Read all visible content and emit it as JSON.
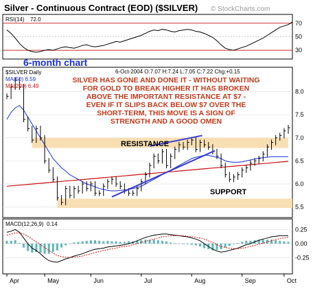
{
  "title": "Silver - Continuous Contract (EOD) ($SILVER)",
  "watermark": "© StockCharts.com",
  "rsi": {
    "label": "RSI(14)",
    "value": "72.0",
    "ylim": [
      20,
      80
    ],
    "ticks": [
      "70",
      "50",
      "30"
    ],
    "values": [
      60,
      55,
      48,
      40,
      34,
      30,
      28,
      27,
      28,
      30,
      31,
      30,
      32,
      34,
      35,
      34,
      33,
      35,
      37,
      38,
      36,
      35,
      36,
      37,
      39,
      41,
      43,
      42,
      44,
      46,
      48,
      50,
      52,
      55,
      58,
      60,
      59,
      61,
      60,
      58,
      57,
      59,
      60,
      61,
      60,
      58,
      57,
      55,
      52,
      49,
      44,
      38,
      33,
      31,
      30,
      32,
      34,
      36,
      39,
      42,
      45,
      48,
      52,
      56,
      60,
      64,
      66,
      68,
      72
    ]
  },
  "price_panel": {
    "header_left": "$SILVER Daily",
    "header_right": "6-Oct-2004  O:7.07  H:7.24  L:7.05  C:7.22  Chg:+0.15",
    "ma50_label": "MA(50) 6.59",
    "ma200_label": "MA(200) 6.49",
    "annotation_lines": [
      "SILVER HAS GONE AND DONE IT - WITHOUT WAITING",
      "FOR GOLD TO BREAK HIGHER IT HAS BROKEN",
      "ABOVE THE IMPORTANT RESISTANCE AT $7 -",
      "EVEN IF IT SLIPS BACK BELOW $7 OVER THE",
      "SHORT-TERM, THIS MOVE IS A SIGN OF",
      "STRENGTH AND A GOOD OMEN"
    ],
    "six_month_label": "6-month chart",
    "resistance_label": "RESISTANCE",
    "support_label": "SUPPORT"
  },
  "macd": {
    "label": "MACD(12,26,9)",
    "value": "0.14",
    "ylim": [
      -0.5,
      0.4
    ],
    "ticks": [
      "0.25",
      "0.00",
      "-0.25"
    ]
  },
  "x_axis": {
    "labels": [
      "Apr",
      "May",
      "Jun",
      "Jul",
      "Aug",
      "Sep",
      "Oct"
    ]
  },
  "chart_data": {
    "type": "line",
    "title": "Silver - Continuous Contract (EOD) ($SILVER)",
    "xlabel": "",
    "ylabel": "",
    "x": [
      "Apr",
      "May",
      "Jun",
      "Jul",
      "Aug",
      "Sep",
      "Oct"
    ],
    "ylim": [
      5.3,
      8.5
    ],
    "yticks": [
      "8.0",
      "7.5",
      "7.0",
      "6.5",
      "6.0",
      "5.5"
    ],
    "price_closes": [
      7.9,
      8.1,
      8.25,
      8.1,
      7.4,
      7.2,
      6.95,
      7.2,
      7.0,
      6.5,
      6.3,
      6.1,
      5.7,
      5.6,
      5.9,
      5.75,
      5.9,
      5.85,
      6.0,
      5.9,
      6.0,
      5.8,
      5.8,
      5.95,
      6.05,
      6.1,
      6.0,
      5.95,
      5.85,
      5.8,
      5.8,
      5.9,
      6.05,
      6.2,
      6.4,
      6.6,
      6.5,
      6.7,
      6.4,
      6.6,
      6.75,
      6.85,
      6.8,
      6.9,
      6.95,
      6.75,
      6.9,
      6.85,
      6.8,
      6.7,
      6.6,
      6.4,
      6.2,
      6.1,
      6.15,
      6.2,
      6.3,
      6.35,
      6.45,
      6.5,
      6.55,
      6.65,
      6.8,
      6.9,
      7.0,
      7.05,
      7.15,
      7.22
    ],
    "ma50": [
      7.4,
      7.55,
      7.65,
      7.7,
      7.6,
      7.45,
      7.3,
      7.15,
      7.0,
      6.85,
      6.7,
      6.55,
      6.45,
      6.35,
      6.28,
      6.2,
      6.15,
      6.1,
      6.05,
      6.0,
      5.97,
      5.94,
      5.9,
      5.88,
      5.86,
      5.85,
      5.85,
      5.86,
      5.87,
      5.88,
      5.9,
      5.92,
      5.95,
      6.0,
      6.05,
      6.1,
      6.15,
      6.2,
      6.25,
      6.3,
      6.35,
      6.4,
      6.45,
      6.5,
      6.55,
      6.58,
      6.6,
      6.62,
      6.62,
      6.6,
      6.58,
      6.55,
      6.5,
      6.48,
      6.47,
      6.47,
      6.48,
      6.5,
      6.52,
      6.54,
      6.56,
      6.57,
      6.58,
      6.59,
      6.59,
      6.59,
      6.59,
      6.59
    ],
    "ma200_start": 5.95,
    "ma200_end": 6.49,
    "resistance_zone": [
      6.78,
      7.0
    ],
    "support_zone": [
      5.48,
      5.68
    ],
    "trendlines": [
      {
        "name": "",
        "x": [
          25.0,
          49.5
        ],
        "y": [
          5.72,
          6.72
        ]
      },
      {
        "name": "",
        "x": [
          34.0,
          46.5
        ],
        "y": [
          6.82,
          7.05
        ]
      }
    ],
    "macd_line": [
      0.2,
      0.22,
      0.25,
      0.2,
      0.1,
      0.0,
      -0.08,
      -0.12,
      -0.18,
      -0.25,
      -0.3,
      -0.32,
      -0.33,
      -0.3,
      -0.27,
      -0.25,
      -0.22,
      -0.2,
      -0.18,
      -0.15,
      -0.12,
      -0.1,
      -0.09,
      -0.08,
      -0.06,
      -0.05,
      -0.04,
      -0.03,
      -0.02,
      0.0,
      0.02,
      0.05,
      0.08,
      0.11,
      0.13,
      0.15,
      0.16,
      0.17,
      0.17,
      0.16,
      0.15,
      0.14,
      0.13,
      0.12,
      0.1,
      0.08,
      0.05,
      0.0,
      -0.05,
      -0.1,
      -0.13,
      -0.15,
      -0.14,
      -0.12,
      -0.1,
      -0.08,
      -0.05,
      -0.02,
      0.0,
      0.03,
      0.06,
      0.08,
      0.1,
      0.12,
      0.13,
      0.14,
      0.14,
      0.14
    ],
    "macd_signal": [
      0.15,
      0.17,
      0.19,
      0.19,
      0.17,
      0.13,
      0.08,
      0.03,
      -0.02,
      -0.07,
      -0.12,
      -0.17,
      -0.21,
      -0.23,
      -0.24,
      -0.25,
      -0.24,
      -0.23,
      -0.22,
      -0.2,
      -0.18,
      -0.16,
      -0.14,
      -0.12,
      -0.11,
      -0.09,
      -0.08,
      -0.06,
      -0.05,
      -0.04,
      -0.02,
      0.0,
      0.02,
      0.04,
      0.06,
      0.08,
      0.1,
      0.12,
      0.13,
      0.14,
      0.14,
      0.14,
      0.14,
      0.13,
      0.12,
      0.11,
      0.1,
      0.08,
      0.05,
      0.02,
      -0.02,
      -0.05,
      -0.07,
      -0.08,
      -0.09,
      -0.09,
      -0.08,
      -0.07,
      -0.05,
      -0.03,
      -0.01,
      0.01,
      0.03,
      0.05,
      0.07,
      0.09,
      0.1,
      0.11
    ],
    "colors": {
      "price": "#000000",
      "ma50": "#1b2fd6",
      "ma200": "#c81010",
      "zone": "#f7d9a6",
      "trendline": "#3b3bd0",
      "rsi": "#000000",
      "macd_hist": "#2a9d9d"
    },
    "grid": true
  }
}
